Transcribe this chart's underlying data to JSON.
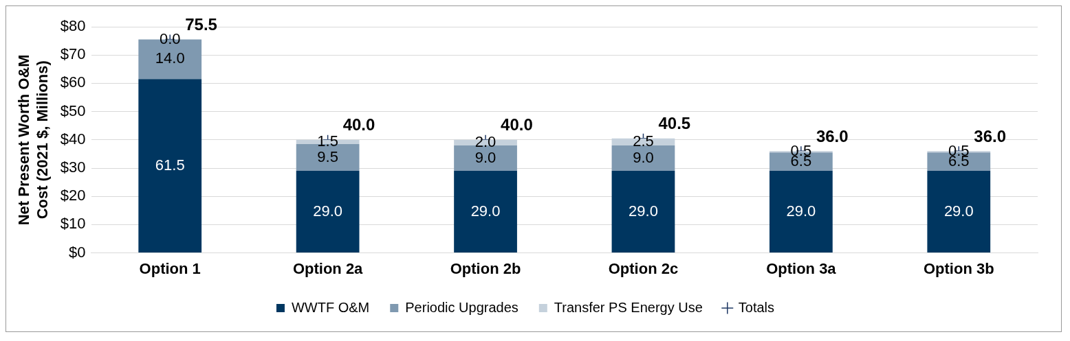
{
  "chart_data": {
    "type": "bar",
    "ylabel": "Net Present Worth O&M Cost (2021 $, Millions)",
    "categories": [
      "Option 1",
      "Option 2a",
      "Option 2b",
      "Option 2c",
      "Option 3a",
      "Option 3b"
    ],
    "stacked": true,
    "ylim": [
      0,
      80
    ],
    "yticks": [
      {
        "value": 0,
        "label": "$0"
      },
      {
        "value": 10,
        "label": "$10"
      },
      {
        "value": 20,
        "label": "$20"
      },
      {
        "value": 30,
        "label": "$30"
      },
      {
        "value": 40,
        "label": "$40"
      },
      {
        "value": 50,
        "label": "$50"
      },
      {
        "value": 60,
        "label": "$60"
      },
      {
        "value": 70,
        "label": "$70"
      },
      {
        "value": 80,
        "label": "$80"
      }
    ],
    "grid": "y",
    "legend": "bottom",
    "series": [
      {
        "name": "WWTF O&M",
        "color": "#003660",
        "values": [
          61.5,
          29.0,
          29.0,
          29.0,
          29.0,
          29.0
        ],
        "value_labels": [
          "61.5",
          "29.0",
          "29.0",
          "29.0",
          "29.0",
          "29.0"
        ]
      },
      {
        "name": "Periodic Upgrades",
        "color": "#7f99b0",
        "values": [
          14.0,
          9.5,
          9.0,
          9.0,
          6.5,
          6.5
        ],
        "value_labels": [
          "14.0",
          "9.5",
          "9.0",
          "9.0",
          "6.5",
          "6.5"
        ]
      },
      {
        "name": "Transfer PS Energy Use",
        "color": "#c5d1dc",
        "values": [
          0.0,
          1.5,
          2.0,
          2.5,
          0.5,
          0.5
        ],
        "value_labels": [
          "0.0",
          "1.5",
          "2.0",
          "2.5",
          "0.5",
          "0.5"
        ]
      },
      {
        "name": "Totals",
        "type": "scatter",
        "marker": "cross",
        "color": "#1f3864",
        "values": [
          75.5,
          40.0,
          40.0,
          40.5,
          36.0,
          36.0
        ],
        "value_labels": [
          "75.5",
          "40.0",
          "40.0",
          "40.5",
          "36.0",
          "36.0"
        ]
      }
    ]
  }
}
